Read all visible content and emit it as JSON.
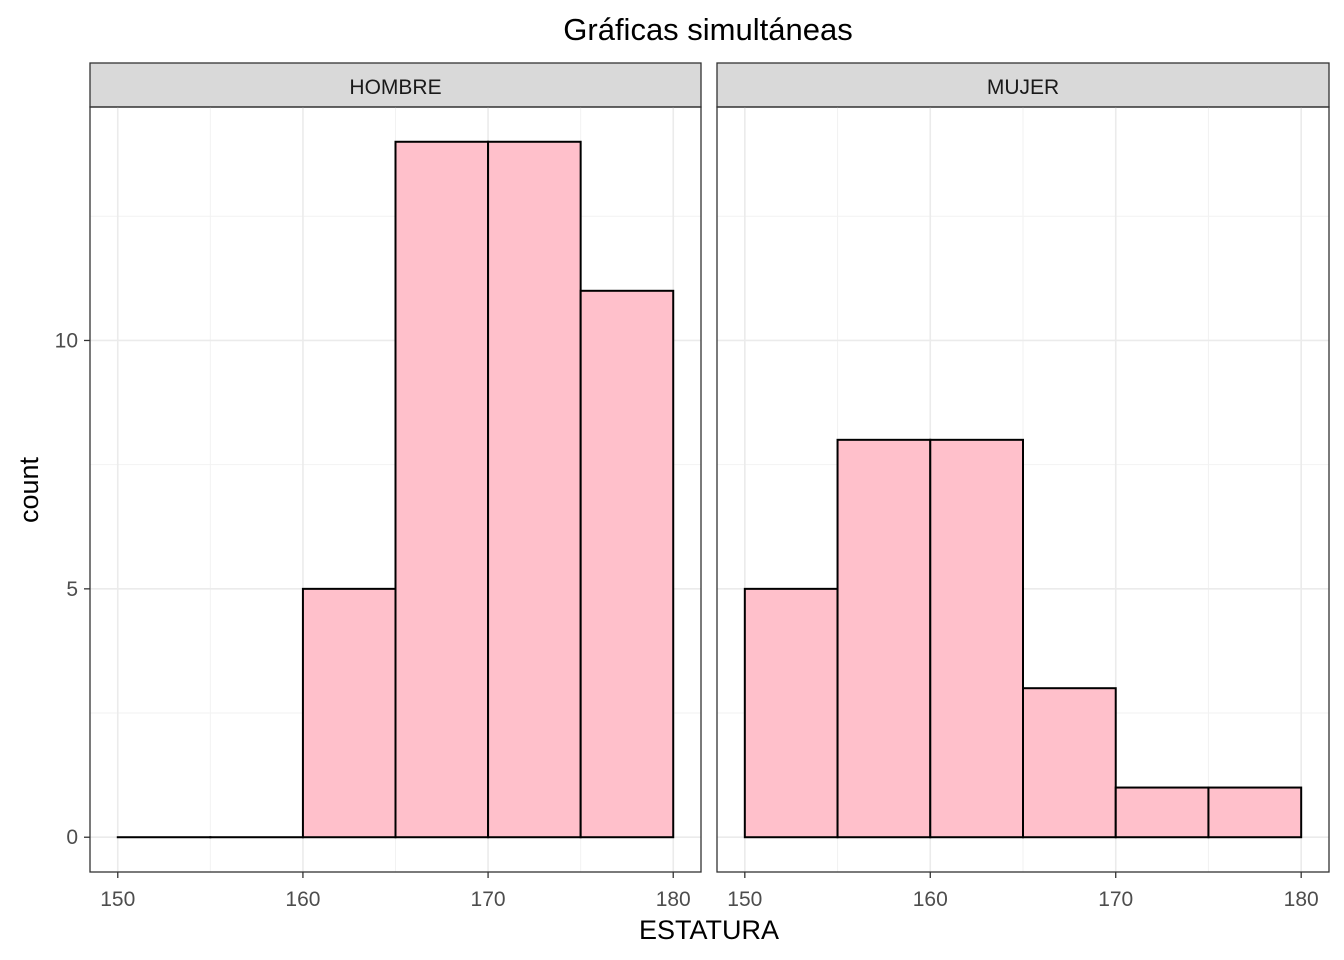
{
  "chart_data": {
    "type": "bar",
    "title": "Gráficas simultáneas",
    "xlabel": "ESTATURA",
    "ylabel": "count",
    "xlim": [
      148.5,
      181.5
    ],
    "ylim": [
      -0.7,
      14.7
    ],
    "x_ticks": [
      150,
      160,
      170,
      180
    ],
    "x_ticks_minor": [
      155,
      165,
      175
    ],
    "y_ticks": [
      0,
      5,
      10
    ],
    "y_ticks_minor": [
      2.5,
      7.5,
      12.5
    ],
    "grid": true,
    "fill_color": "#ffc0cb",
    "edge_color": "#000000",
    "strip_color": "#d9d9d9",
    "bin_edges": [
      150,
      155,
      160,
      165,
      170,
      175,
      180
    ],
    "panels": [
      {
        "label": "HOMBRE",
        "values": [
          0,
          0,
          5,
          14,
          14,
          11
        ]
      },
      {
        "label": "MUJER",
        "values": [
          5,
          8,
          8,
          3,
          1,
          1
        ]
      }
    ]
  }
}
